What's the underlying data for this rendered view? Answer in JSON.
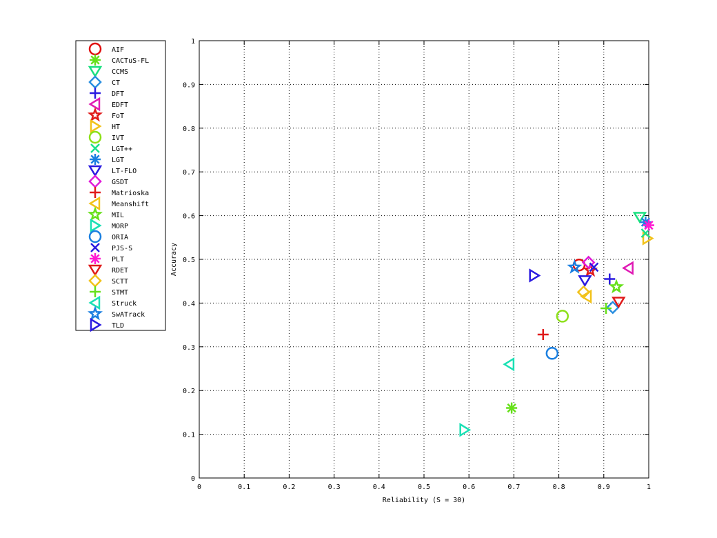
{
  "chart_data": {
    "type": "scatter",
    "xlabel": "Reliability (S = 30)",
    "ylabel": "Accuracy",
    "xlim": [
      0,
      1
    ],
    "ylim": [
      0,
      1
    ],
    "x_ticks": [
      0,
      0.1,
      0.2,
      0.3,
      0.4,
      0.5,
      0.6,
      0.7,
      0.8,
      0.9,
      1
    ],
    "y_ticks": [
      0,
      0.1,
      0.2,
      0.3,
      0.4,
      0.5,
      0.6,
      0.7,
      0.8,
      0.9,
      1
    ],
    "x_tick_labels": [
      "0",
      "0.1",
      "0.2",
      "0.3",
      "0.4",
      "0.5",
      "0.6",
      "0.7",
      "0.8",
      "0.9",
      "1"
    ],
    "y_tick_labels": [
      "0",
      "0.1",
      "0.2",
      "0.3",
      "0.4",
      "0.5",
      "0.6",
      "0.7",
      "0.8",
      "0.9",
      "1"
    ],
    "grid": true,
    "legend_position": "left, outside plot",
    "series": [
      {
        "name": "AIF",
        "marker": "circle",
        "color": "#e01010",
        "x": 0.845,
        "y": 0.487
      },
      {
        "name": "CACTuS-FL",
        "marker": "asterisk",
        "color": "#66e01a",
        "x": 0.695,
        "y": 0.16
      },
      {
        "name": "CCMS",
        "marker": "triangle-down",
        "color": "#1ae080",
        "x": 0.98,
        "y": 0.597
      },
      {
        "name": "CT",
        "marker": "diamond",
        "color": "#2a8fe0",
        "x": 0.92,
        "y": 0.39
      },
      {
        "name": "DFT",
        "marker": "plus",
        "color": "#2a1ae0",
        "x": 0.913,
        "y": 0.455
      },
      {
        "name": "EDFT",
        "marker": "triangle-left",
        "color": "#e01ab4",
        "x": 0.955,
        "y": 0.48
      },
      {
        "name": "FoT",
        "marker": "pentagram",
        "color": "#e01a1a",
        "x": 0.87,
        "y": 0.475
      },
      {
        "name": "HT",
        "marker": "triangle-right",
        "color": "#f2c21a",
        "x": 0.997,
        "y": 0.548
      },
      {
        "name": "IVT",
        "marker": "circle",
        "color": "#8de01a",
        "x": 0.808,
        "y": 0.37
      },
      {
        "name": "LGT++",
        "marker": "x",
        "color": "#1ae08d",
        "x": 0.993,
        "y": 0.56
      },
      {
        "name": "LGT",
        "marker": "asterisk",
        "color": "#1a7fe0",
        "x": 0.993,
        "y": 0.585
      },
      {
        "name": "LT-FLO",
        "marker": "triangle-down",
        "color": "#2a1ae0",
        "x": 0.858,
        "y": 0.452
      },
      {
        "name": "GSDT",
        "marker": "diamond",
        "color": "#e01ad8",
        "x": 0.866,
        "y": 0.493
      },
      {
        "name": "Matrioska",
        "marker": "plus",
        "color": "#e01a1a",
        "x": 0.765,
        "y": 0.328
      },
      {
        "name": "Meanshift",
        "marker": "triangle-left",
        "color": "#f2c21a",
        "x": 0.862,
        "y": 0.415
      },
      {
        "name": "MIL",
        "marker": "pentagram",
        "color": "#66e01a",
        "x": 0.928,
        "y": 0.437
      },
      {
        "name": "MORP",
        "marker": "triangle-right",
        "color": "#1ae0b4",
        "x": 0.59,
        "y": 0.11
      },
      {
        "name": "ORIA",
        "marker": "circle",
        "color": "#1a7fe0",
        "x": 0.785,
        "y": 0.285
      },
      {
        "name": "PJS-S",
        "marker": "x",
        "color": "#2a1ae0",
        "x": 0.878,
        "y": 0.482
      },
      {
        "name": "PLT",
        "marker": "asterisk",
        "color": "#ff1ad2",
        "x": 1.0,
        "y": 0.578
      },
      {
        "name": "RDET",
        "marker": "triangle-down",
        "color": "#e01a1a",
        "x": 0.933,
        "y": 0.403
      },
      {
        "name": "SCTT",
        "marker": "diamond",
        "color": "#f2c21a",
        "x": 0.855,
        "y": 0.425
      },
      {
        "name": "STMT",
        "marker": "plus",
        "color": "#66e01a",
        "x": 0.905,
        "y": 0.388
      },
      {
        "name": "Struck",
        "marker": "triangle-left",
        "color": "#1ae0b4",
        "x": 0.69,
        "y": 0.26
      },
      {
        "name": "SwATrack",
        "marker": "pentagram",
        "color": "#1a7fe0",
        "x": 0.835,
        "y": 0.482
      },
      {
        "name": "TLD",
        "marker": "triangle-right",
        "color": "#2a1ae0",
        "x": 0.745,
        "y": 0.463
      }
    ]
  }
}
